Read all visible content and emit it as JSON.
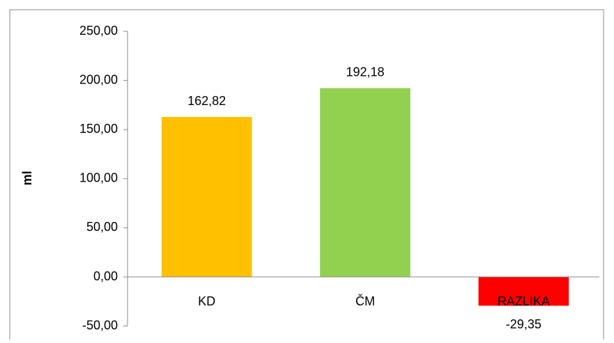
{
  "chart_data": {
    "type": "bar",
    "ylabel": "ml",
    "categories": [
      "KD",
      "ČM",
      "RAZLIKA"
    ],
    "values": [
      162.82,
      192.18,
      -29.35
    ],
    "value_labels": [
      "162,82",
      "192,18",
      "-29,35"
    ],
    "colors": [
      "#FFC000",
      "#92D050",
      "#FF0000"
    ],
    "ylim": [
      -50,
      250
    ],
    "yticks": [
      {
        "value": -50,
        "label": "-50,00"
      },
      {
        "value": 0,
        "label": "0,00"
      },
      {
        "value": 50,
        "label": "50,00"
      },
      {
        "value": 100,
        "label": "100,00"
      },
      {
        "value": 150,
        "label": "150,00"
      },
      {
        "value": 200,
        "label": "200,00"
      },
      {
        "value": 250,
        "label": "250,00"
      }
    ],
    "grid": false
  }
}
